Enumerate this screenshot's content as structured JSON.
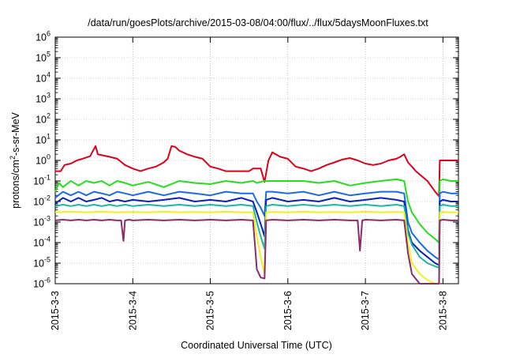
{
  "chart_data": {
    "type": "line",
    "title": "/data/run/goesPlots/archive/2015-03-08/04:00/flux/../flux/5daysMoonFluxes.txt",
    "xlabel": "Coordinated Universal Time (UTC)",
    "ylabel": "protons/cm²-s-sr-MeV",
    "ylabel_parts": {
      "pre": "protons/cm",
      "sup": "2",
      "post": "-s-sr-MeV"
    },
    "xlim": [
      0,
      5.2
    ],
    "ylim_log10": [
      -6,
      6
    ],
    "y_scale": "log",
    "x_ticks": [
      {
        "x": 0,
        "label": "2015-3-3"
      },
      {
        "x": 1,
        "label": "2015-3-4"
      },
      {
        "x": 2,
        "label": "2015-3-5"
      },
      {
        "x": 3,
        "label": "2015-3-6"
      },
      {
        "x": 4,
        "label": "2015-3-7"
      },
      {
        "x": 5,
        "label": "2015-3-8"
      }
    ],
    "y_ticks": [
      {
        "exp": -6,
        "label_base": "10",
        "label_exp": "-6"
      },
      {
        "exp": -5,
        "label_base": "10",
        "label_exp": "-5"
      },
      {
        "exp": -4,
        "label_base": "10",
        "label_exp": "-4"
      },
      {
        "exp": -3,
        "label_base": "10",
        "label_exp": "-3"
      },
      {
        "exp": -2,
        "label_base": "10",
        "label_exp": "-2"
      },
      {
        "exp": -1,
        "label_base": "10",
        "label_exp": "-1"
      },
      {
        "exp": 0,
        "label_base": "10",
        "label_exp": "0"
      },
      {
        "exp": 1,
        "label_base": "10",
        "label_exp": "1"
      },
      {
        "exp": 2,
        "label_base": "10",
        "label_exp": "2"
      },
      {
        "exp": 3,
        "label_base": "10",
        "label_exp": "3"
      },
      {
        "exp": 4,
        "label_base": "10",
        "label_exp": "4"
      },
      {
        "exp": 5,
        "label_base": "10",
        "label_exp": "5"
      },
      {
        "exp": 6,
        "label_base": "10",
        "label_exp": "6"
      }
    ],
    "grid": true,
    "legend": "none",
    "series": [
      {
        "color": "#e0001a",
        "x": [
          0.0,
          0.07,
          0.12,
          0.2,
          0.28,
          0.35,
          0.45,
          0.52,
          0.55,
          0.6,
          0.7,
          0.8,
          0.9,
          1.0,
          1.1,
          1.2,
          1.3,
          1.4,
          1.45,
          1.5,
          1.55,
          1.6,
          1.7,
          1.8,
          1.9,
          2.0,
          2.1,
          2.2,
          2.3,
          2.4,
          2.5,
          2.55,
          2.65,
          2.7,
          2.75,
          2.8,
          2.9,
          3.0,
          3.1,
          3.2,
          3.3,
          3.4,
          3.5,
          3.6,
          3.7,
          3.8,
          3.9,
          4.0,
          4.1,
          4.2,
          4.3,
          4.4,
          4.45,
          4.5,
          4.55,
          4.6,
          4.65,
          4.8,
          4.9,
          4.95,
          4.96,
          5.0,
          5.1,
          5.2
        ],
        "y": [
          0.3,
          0.3,
          0.6,
          0.7,
          1.0,
          1.2,
          1.6,
          5.0,
          2.0,
          1.8,
          1.5,
          1.2,
          0.6,
          0.4,
          0.3,
          0.4,
          0.5,
          0.8,
          1.2,
          5.0,
          4.5,
          3.0,
          2.0,
          1.5,
          1.2,
          0.5,
          0.4,
          0.3,
          0.3,
          0.3,
          0.3,
          0.4,
          0.4,
          0.09,
          1.0,
          2.5,
          1.5,
          1.2,
          0.5,
          0.4,
          0.3,
          0.4,
          0.6,
          0.8,
          1.1,
          1.3,
          1.0,
          0.7,
          0.6,
          0.7,
          1.0,
          1.2,
          1.5,
          2.0,
          0.8,
          0.5,
          0.3,
          0.1,
          0.03,
          0.018,
          1.0,
          1.0,
          1.0,
          1.0
        ]
      },
      {
        "color": "#22e01a",
        "x": [
          0.0,
          0.05,
          0.1,
          0.2,
          0.3,
          0.4,
          0.5,
          0.6,
          0.7,
          0.8,
          0.9,
          1.0,
          1.2,
          1.4,
          1.6,
          1.8,
          2.0,
          2.2,
          2.4,
          2.55,
          2.6,
          2.65,
          2.7,
          2.72,
          2.8,
          3.0,
          3.2,
          3.4,
          3.6,
          3.8,
          4.0,
          4.2,
          4.4,
          4.5,
          4.55,
          4.6,
          4.7,
          4.8,
          4.9,
          4.95,
          4.96,
          5.0,
          5.1,
          5.2
        ],
        "y": [
          0.03,
          0.08,
          0.05,
          0.1,
          0.06,
          0.1,
          0.08,
          0.1,
          0.06,
          0.1,
          0.08,
          0.06,
          0.09,
          0.05,
          0.1,
          0.08,
          0.07,
          0.1,
          0.08,
          0.1,
          0.08,
          0.09,
          0.1,
          0.1,
          0.1,
          0.1,
          0.1,
          0.08,
          0.1,
          0.06,
          0.08,
          0.1,
          0.12,
          0.1,
          0.01,
          0.003,
          0.0008,
          0.0003,
          0.00015,
          0.0001,
          0.1,
          0.12,
          0.1,
          0.1
        ]
      },
      {
        "color": "#1a6af0",
        "x": [
          0.0,
          0.1,
          0.2,
          0.3,
          0.4,
          0.5,
          0.6,
          0.7,
          0.8,
          0.9,
          1.0,
          1.2,
          1.4,
          1.6,
          1.8,
          2.0,
          2.2,
          2.4,
          2.55,
          2.6,
          2.65,
          2.7,
          2.72,
          2.8,
          3.0,
          3.2,
          3.4,
          3.6,
          3.8,
          4.0,
          4.2,
          4.4,
          4.5,
          4.55,
          4.6,
          4.7,
          4.8,
          4.9,
          4.95,
          4.96,
          5.0,
          5.1,
          5.2
        ],
        "y": [
          0.015,
          0.03,
          0.02,
          0.03,
          0.02,
          0.03,
          0.025,
          0.02,
          0.03,
          0.025,
          0.02,
          0.03,
          0.02,
          0.03,
          0.025,
          0.02,
          0.03,
          0.025,
          0.025,
          0.01,
          0.005,
          0.002,
          0.03,
          0.03,
          0.025,
          0.03,
          0.02,
          0.03,
          0.02,
          0.025,
          0.03,
          0.03,
          0.025,
          0.001,
          0.0003,
          0.0001,
          4e-05,
          2e-05,
          1.5e-05,
          0.025,
          0.03,
          0.025,
          0.025
        ]
      },
      {
        "color": "#0a20c0",
        "x": [
          0.0,
          0.1,
          0.2,
          0.3,
          0.4,
          0.5,
          0.6,
          0.7,
          0.8,
          0.9,
          1.0,
          1.2,
          1.4,
          1.6,
          1.8,
          2.0,
          2.2,
          2.4,
          2.55,
          2.6,
          2.65,
          2.7,
          2.72,
          2.8,
          3.0,
          3.2,
          3.4,
          3.6,
          3.8,
          4.0,
          4.2,
          4.4,
          4.5,
          4.55,
          4.6,
          4.7,
          4.8,
          4.9,
          4.95,
          4.96,
          5.0,
          5.1,
          5.2
        ],
        "y": [
          0.008,
          0.015,
          0.01,
          0.015,
          0.01,
          0.012,
          0.015,
          0.01,
          0.012,
          0.01,
          0.012,
          0.01,
          0.012,
          0.015,
          0.01,
          0.012,
          0.01,
          0.015,
          0.01,
          0.003,
          0.0008,
          0.0002,
          0.012,
          0.015,
          0.01,
          0.012,
          0.01,
          0.015,
          0.01,
          0.012,
          0.015,
          0.012,
          0.01,
          0.0004,
          0.0001,
          4e-05,
          2e-05,
          1e-05,
          8e-06,
          0.01,
          0.012,
          0.01,
          0.01
        ]
      },
      {
        "color": "#1ab8a0",
        "x": [
          0.0,
          0.1,
          0.2,
          0.3,
          0.4,
          0.5,
          0.6,
          0.7,
          0.8,
          0.9,
          1.0,
          1.2,
          1.4,
          1.6,
          1.8,
          2.0,
          2.2,
          2.4,
          2.55,
          2.6,
          2.65,
          2.7,
          2.72,
          2.8,
          3.0,
          3.2,
          3.4,
          3.6,
          3.8,
          4.0,
          4.2,
          4.4,
          4.5,
          4.55,
          4.6,
          4.7,
          4.8,
          4.9,
          4.95,
          4.96,
          5.0,
          5.1,
          5.2
        ],
        "y": [
          0.006,
          0.007,
          0.006,
          0.007,
          0.006,
          0.007,
          0.006,
          0.007,
          0.006,
          0.007,
          0.006,
          0.007,
          0.006,
          0.007,
          0.006,
          0.007,
          0.006,
          0.007,
          0.006,
          0.001,
          0.0002,
          5e-05,
          0.006,
          0.007,
          0.006,
          0.007,
          0.006,
          0.007,
          0.006,
          0.007,
          0.006,
          0.007,
          0.006,
          0.0003,
          8e-05,
          2e-05,
          1e-05,
          7e-06,
          6e-06,
          0.006,
          0.007,
          0.006,
          0.006
        ]
      },
      {
        "color": "#f0f01a",
        "x": [
          0.0,
          0.2,
          0.4,
          0.6,
          0.8,
          1.0,
          1.2,
          1.4,
          1.6,
          1.8,
          2.0,
          2.2,
          2.4,
          2.55,
          2.6,
          2.65,
          2.7,
          2.72,
          2.8,
          3.0,
          3.2,
          3.4,
          3.6,
          3.8,
          4.0,
          4.2,
          4.4,
          4.5,
          4.55,
          4.6,
          4.7,
          4.8,
          4.9,
          4.95,
          4.96,
          5.0,
          5.1,
          5.2
        ],
        "y": [
          0.003,
          0.0032,
          0.003,
          0.0032,
          0.003,
          0.0031,
          0.003,
          0.0032,
          0.003,
          0.0031,
          0.003,
          0.0032,
          0.003,
          0.003,
          0.0002,
          2e-05,
          3e-06,
          0.003,
          0.0031,
          0.003,
          0.0032,
          0.003,
          0.0031,
          0.003,
          0.0032,
          0.003,
          0.0031,
          0.003,
          0.0001,
          1e-05,
          3e-06,
          1.5e-06,
          1e-06,
          1e-06,
          0.003,
          0.0031,
          0.003,
          0.003
        ]
      },
      {
        "color": "#8c2a6a",
        "x": [
          0.0,
          0.1,
          0.2,
          0.3,
          0.4,
          0.5,
          0.6,
          0.7,
          0.8,
          0.85,
          0.88,
          0.9,
          0.95,
          1.0,
          1.2,
          1.4,
          1.6,
          1.8,
          2.0,
          2.2,
          2.4,
          2.55,
          2.58,
          2.6,
          2.65,
          2.7,
          2.72,
          2.8,
          3.0,
          3.2,
          3.4,
          3.6,
          3.8,
          3.9,
          3.93,
          3.96,
          4.0,
          4.2,
          4.4,
          4.5,
          4.55,
          4.6,
          4.7,
          4.8,
          4.9,
          4.95,
          4.96,
          5.0,
          5.1,
          5.2
        ],
        "y": [
          0.0012,
          0.0013,
          0.0012,
          0.0013,
          0.0012,
          0.0013,
          0.0012,
          0.0013,
          0.0012,
          0.0012,
          0.00012,
          0.0012,
          0.0013,
          0.0012,
          0.0013,
          0.0012,
          0.0013,
          0.0012,
          0.0013,
          0.0012,
          0.0013,
          0.0012,
          5e-05,
          5e-06,
          2e-06,
          1.8e-06,
          0.0012,
          0.0013,
          0.0012,
          0.0013,
          0.0012,
          0.0013,
          0.0012,
          0.0012,
          4e-05,
          0.0012,
          0.0013,
          0.0012,
          0.0013,
          0.0012,
          3e-05,
          3e-06,
          1e-06,
          8e-07,
          7e-07,
          7e-07,
          0.0012,
          0.0013,
          0.0012,
          0.0012
        ]
      }
    ]
  }
}
